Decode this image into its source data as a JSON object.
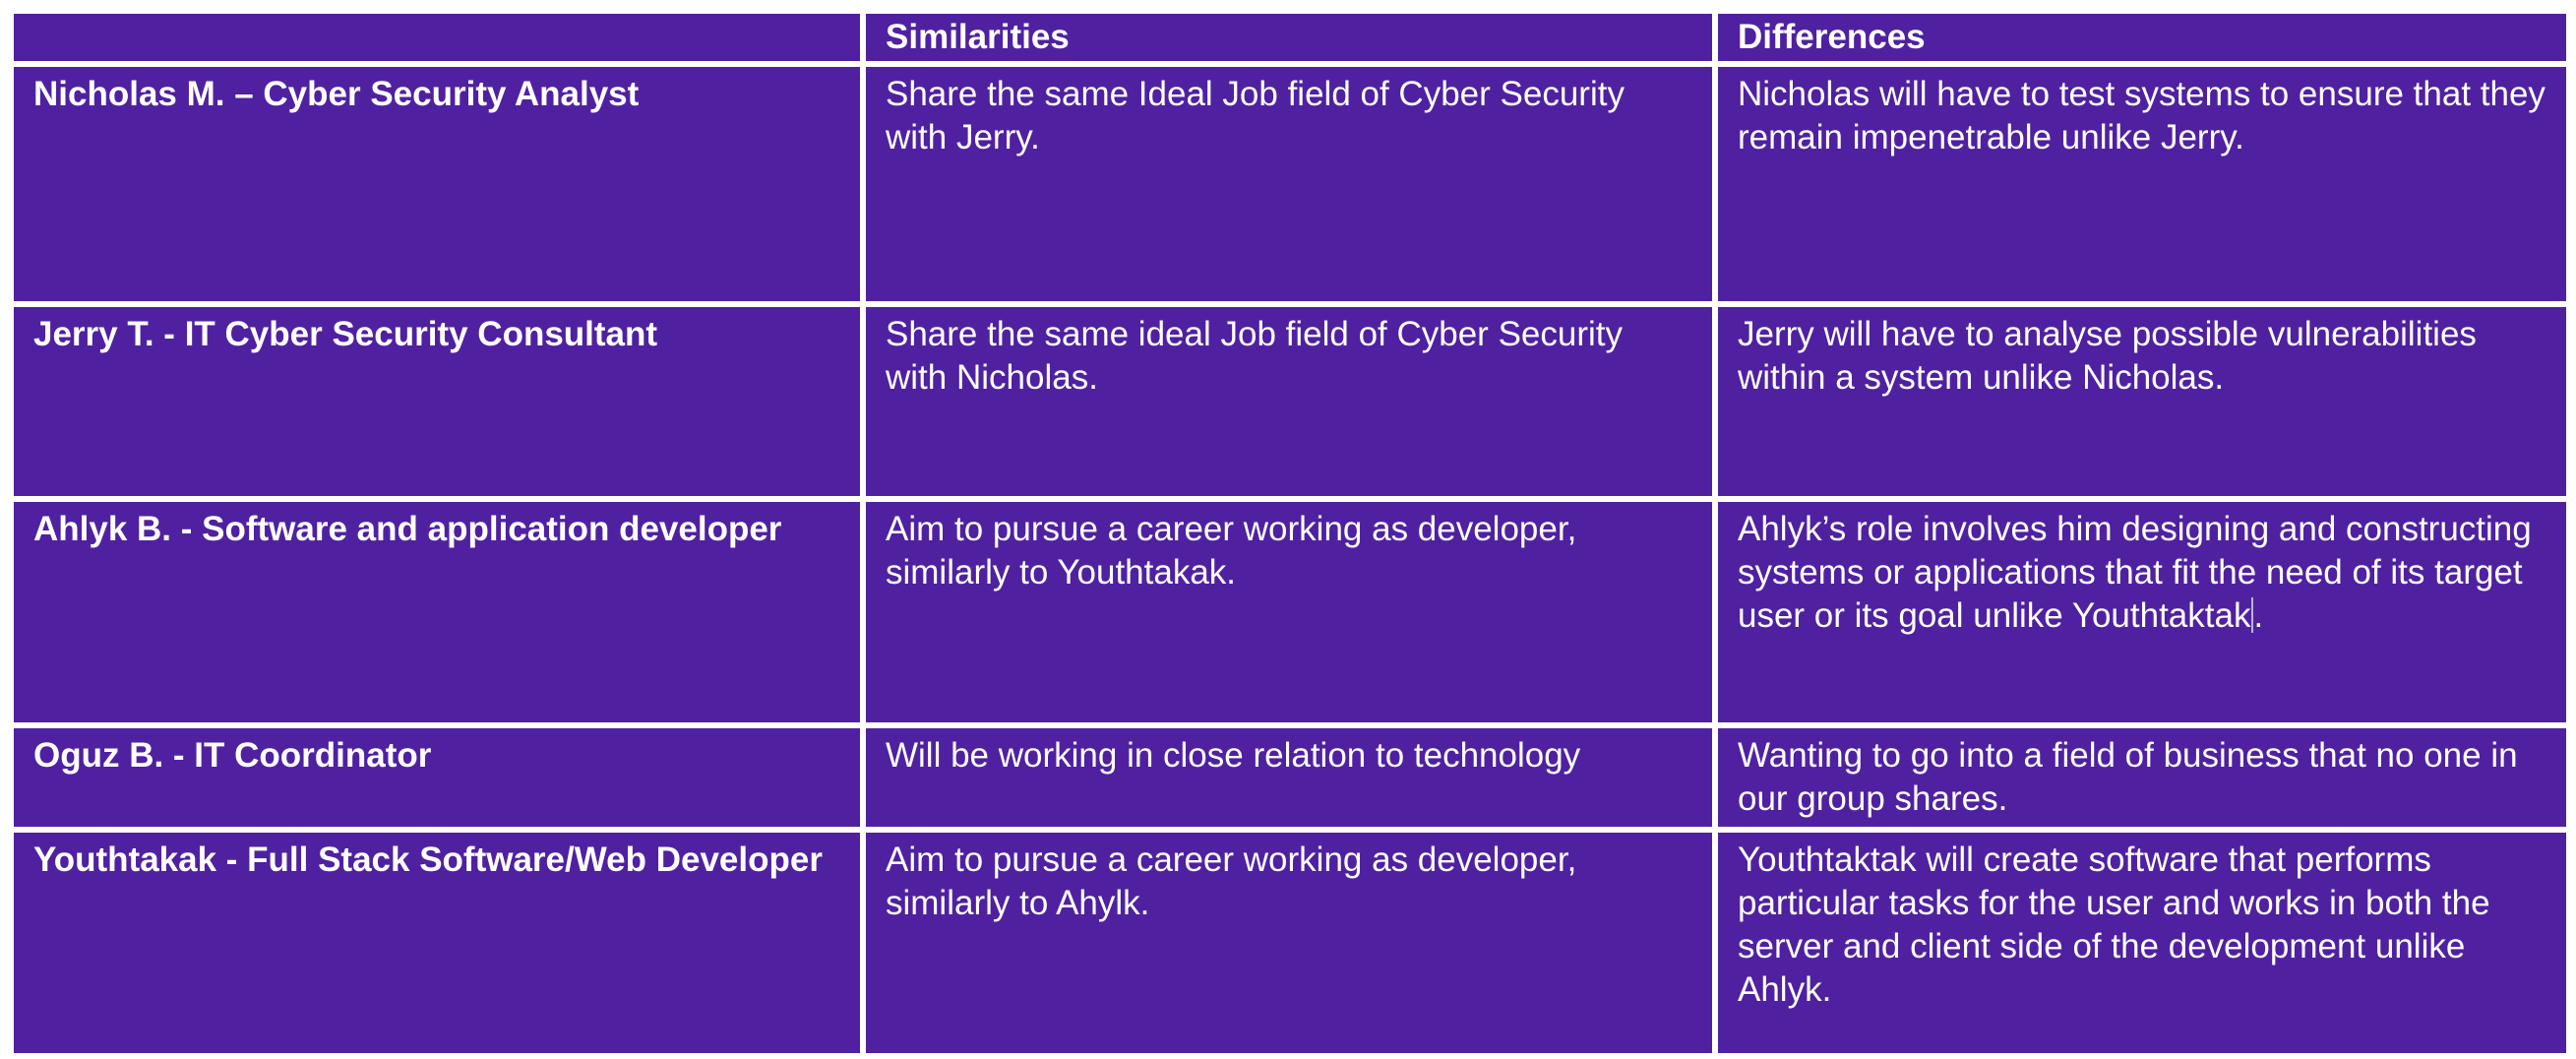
{
  "table": {
    "headers": [
      "",
      "Similarities",
      "Differences"
    ],
    "rows": [
      {
        "name": "Nicholas M. – Cyber Security Analyst",
        "similarities": "Share the same Ideal Job field of Cyber Security with Jerry.",
        "differences": "Nicholas will have to test systems to ensure that they remain impenetrable unlike Jerry."
      },
      {
        "name": "Jerry T. - IT Cyber Security Consultant",
        "similarities": "Share the same ideal Job field of Cyber Security with Nicholas.",
        "differences": "Jerry will have to analyse possible vulnerabilities within a system unlike Nicholas."
      },
      {
        "name": "Ahlyk B. - Software and application developer",
        "similarities": "Aim to pursue a career working as developer, similarly to Youthtakak.",
        "differences_before_cursor": "Ahlyk’s role involves him designing and constructing systems or applications that fit the need of its target user or its goal unlike Youthtaktak",
        "differences_after_cursor": "."
      },
      {
        "name": "Oguz B. - IT Coordinator",
        "similarities": "Will be working in close relation to technology",
        "differences": "Wanting to go into a field of business that no one in our group shares."
      },
      {
        "name": "Youthtakak - Full Stack Software/Web Developer",
        "similarities": "Aim to pursue a career working as developer, similarly to Ahylk.",
        "differences": "Youthtaktak will create software that performs particular tasks for the user and works in both the server and client side of the development unlike Ahlyk."
      }
    ]
  }
}
